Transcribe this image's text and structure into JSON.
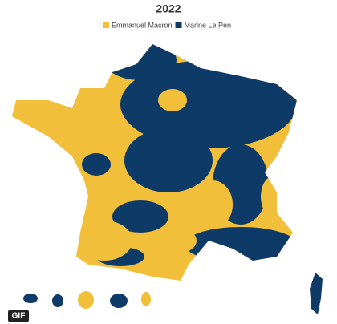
{
  "title": "2022",
  "legend": [
    {
      "name": "Emmanuel Macron",
      "color": "#f2bf3b"
    },
    {
      "name": "Marine Le Pen",
      "color": "#0d3a66"
    }
  ],
  "badge": "GIF"
}
